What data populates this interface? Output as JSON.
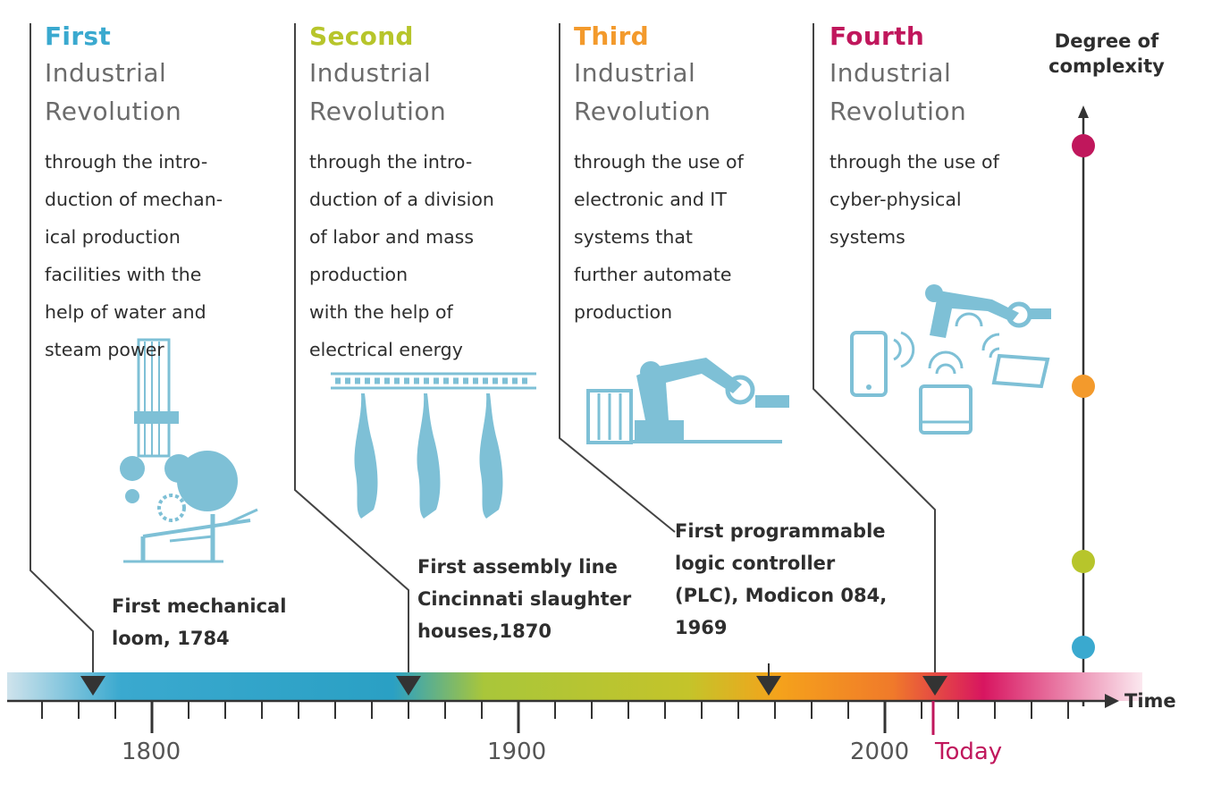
{
  "revolutions": [
    {
      "ordinal": "First",
      "title_line1": "Industrial",
      "title_line2": "Revolution",
      "color": "#3aa9cf",
      "description": "through the intro-\nduction of mechan-\nical production\nfacilities with the\nhelp of water and\nsteam power",
      "milestone": "First mechanical\nloom, 1784",
      "illustration": "mechanical-loom-icon"
    },
    {
      "ordinal": "Second",
      "title_line1": "Industrial",
      "title_line2": "Revolution",
      "color": "#b7c52b",
      "description": "through the intro-\nduction of a division\nof labor and mass\nproduction\nwith the help of\nelectrical energy",
      "milestone": "First assembly line\nCincinnati slaughter\nhouses,1870",
      "illustration": "assembly-line-icon"
    },
    {
      "ordinal": "Third",
      "title_line1": "Industrial",
      "title_line2": "Revolution",
      "color": "#f39a2c",
      "description": "through the use of\nelectronic and IT\nsystems that\nfurther automate\nproduction",
      "milestone": "First programmable\nlogic controller\n(PLC), Modicon 084,\n1969",
      "illustration": "robot-arm-icon"
    },
    {
      "ordinal": "Fourth",
      "title_line1": "Industrial",
      "title_line2": "Revolution",
      "color": "#c0175c",
      "description": "through the use of\ncyber-physical\nsystems",
      "milestone": "",
      "illustration": "connected-devices-icon"
    }
  ],
  "axis": {
    "y_label": "Degree of\ncomplexity",
    "x_label": "Time",
    "years": [
      "1800",
      "1900",
      "2000"
    ],
    "today_label": "Today",
    "today_color": "#c0175c"
  }
}
